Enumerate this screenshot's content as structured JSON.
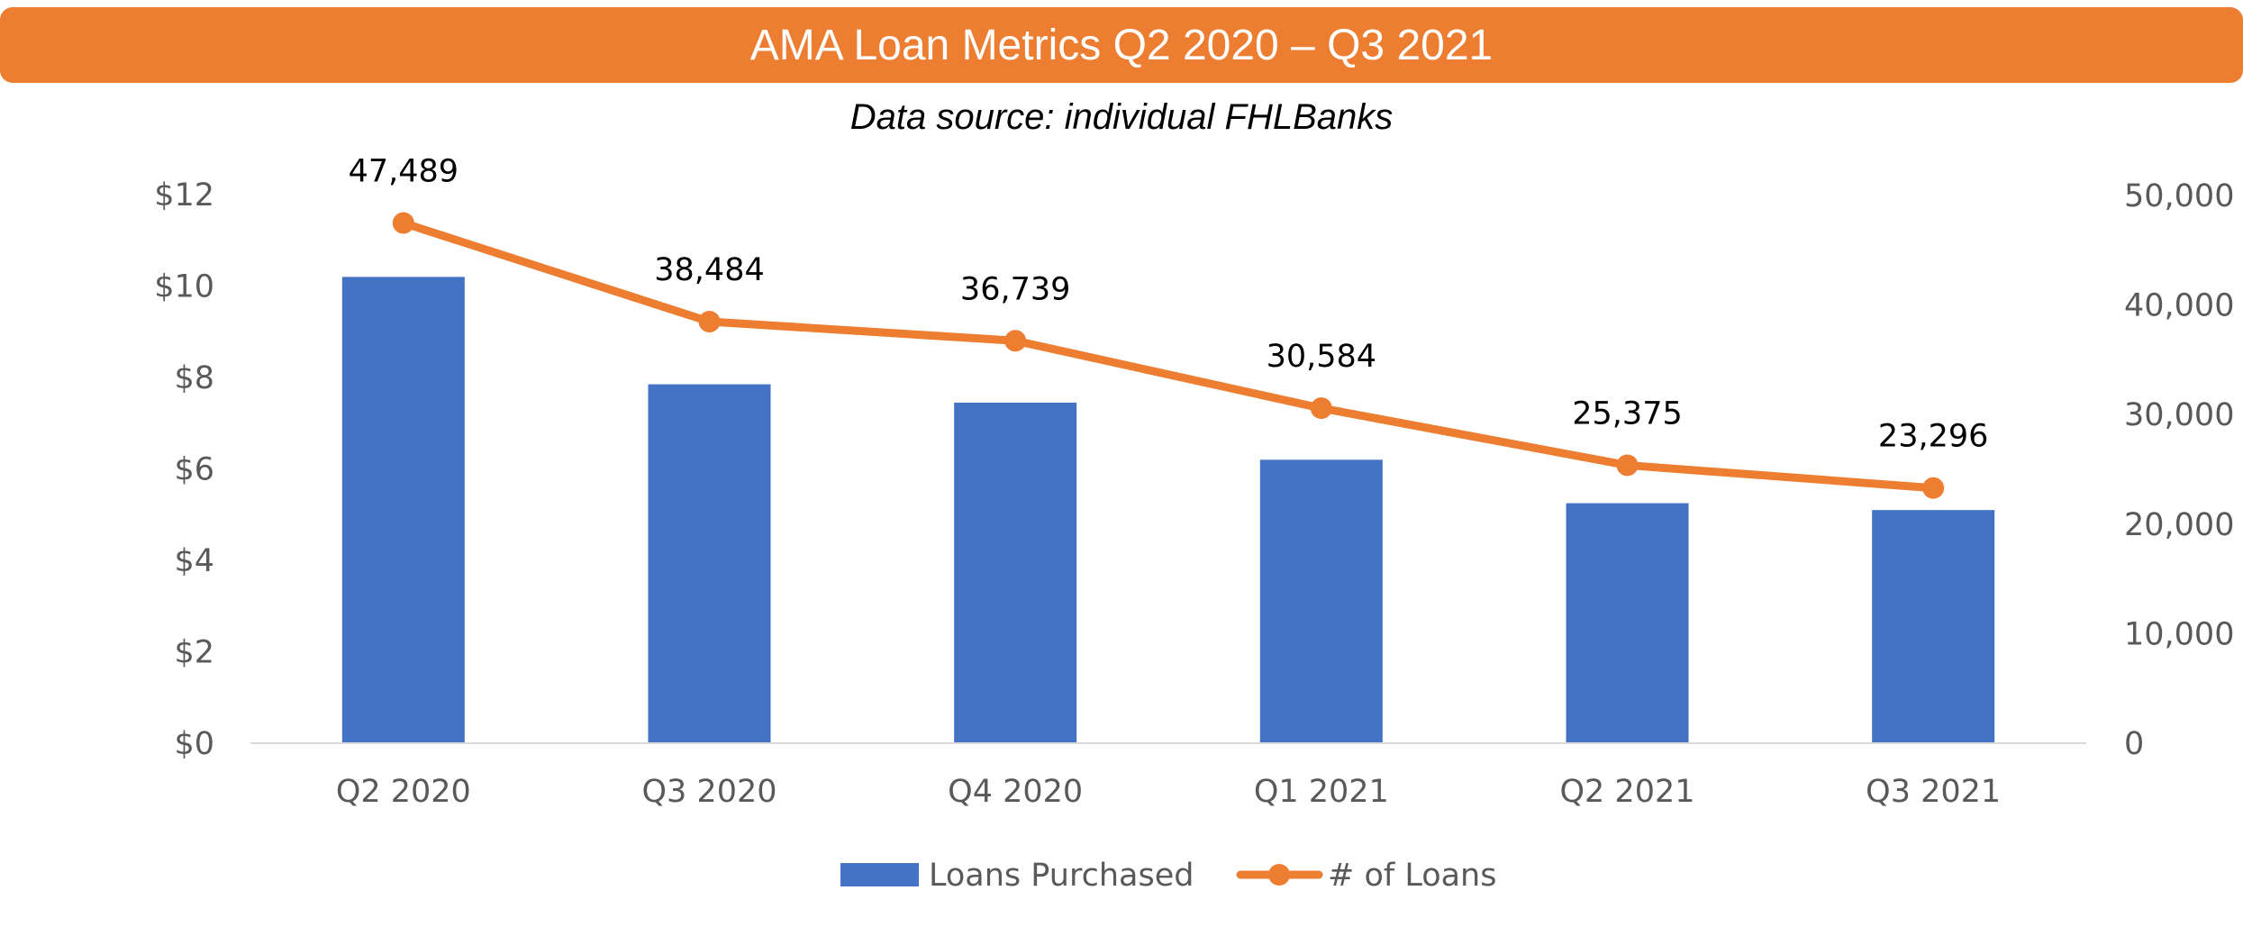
{
  "header": {
    "title": "AMA Loan Metrics Q2 2020 – Q3 2021",
    "subtitle": "Data source: individual FHLBanks"
  },
  "chart_data": {
    "type": "bar",
    "categories": [
      "Q2 2020",
      "Q3 2020",
      "Q4 2020",
      "Q1 2021",
      "Q2 2021",
      "Q3 2021"
    ],
    "series": [
      {
        "name": "Loans Purchased",
        "type": "bar",
        "axis": "left",
        "color": "#4472C4",
        "values": [
          10.2,
          7.85,
          7.45,
          6.2,
          5.25,
          5.1
        ]
      },
      {
        "name": "# of Loans",
        "type": "line",
        "axis": "right",
        "color": "#ED7D31",
        "values": [
          47489,
          38484,
          36739,
          30584,
          25375,
          23296
        ],
        "data_labels": [
          "47,489",
          "38,484",
          "36,739",
          "30,584",
          "25,375",
          "23,296"
        ]
      }
    ],
    "y_left": {
      "min": 0,
      "max": 12,
      "ticks": [
        0,
        2,
        4,
        6,
        8,
        10,
        12
      ],
      "tick_labels": [
        "$0",
        "$2",
        "$4",
        "$6",
        "$8",
        "$10",
        "$12"
      ]
    },
    "y_right": {
      "min": 0,
      "max": 50000,
      "ticks": [
        0,
        10000,
        20000,
        30000,
        40000,
        50000
      ],
      "tick_labels": [
        "0",
        "10,000",
        "20,000",
        "30,000",
        "40,000",
        "50,000"
      ]
    },
    "grid": false,
    "legend": "bottom-center"
  }
}
